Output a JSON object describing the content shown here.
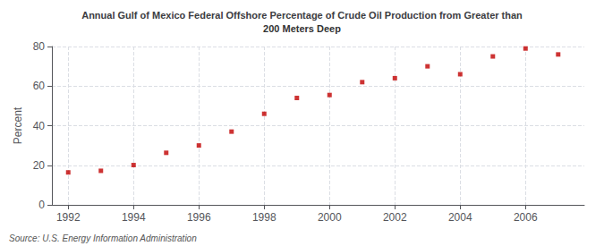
{
  "chart_data": {
    "type": "scatter",
    "title": "Annual Gulf of Mexico Federal Offshore Percentage of Crude Oil Production from Greater than",
    "subtitle": "200 Meters Deep",
    "ylabel": "Percent",
    "annotation": "Source: U.S. Energy Information Administration",
    "x": [
      1992,
      1993,
      1994,
      1995,
      1996,
      1997,
      1998,
      1999,
      2000,
      2001,
      2002,
      2003,
      2004,
      2005,
      2006,
      2007
    ],
    "values": [
      16.4,
      17.2,
      20.1,
      26.3,
      30.0,
      37.0,
      46.0,
      54.0,
      55.5,
      62.0,
      64.0,
      70.0,
      66.0,
      75.0,
      79.0,
      76.0
    ],
    "color": "#c00000",
    "marker": "square",
    "xlim": [
      1991.5,
      2007.8
    ],
    "xticks": [
      1992,
      1994,
      1996,
      1998,
      2000,
      2002,
      2004,
      2006
    ],
    "ylim": [
      0,
      80
    ],
    "yticks": [
      0,
      20,
      40,
      60,
      80
    ],
    "grid": true
  }
}
